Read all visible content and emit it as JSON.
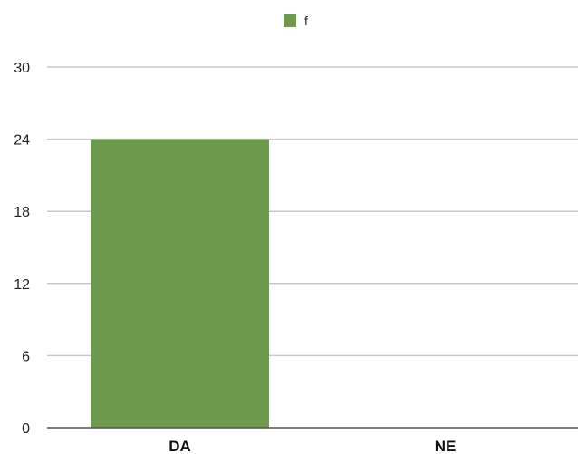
{
  "chart_data": {
    "type": "bar",
    "categories": [
      "DA",
      "NE"
    ],
    "series": [
      {
        "name": "f",
        "values": [
          24,
          0
        ]
      }
    ],
    "title": "",
    "xlabel": "",
    "ylabel": "",
    "ylim": [
      0,
      30
    ],
    "yticks": [
      "0",
      "6",
      "12",
      "18",
      "24",
      "30"
    ],
    "grid": true,
    "legend_position": "top-center",
    "colors": {
      "series": "#6e9a4e",
      "grid": "#c8c8c8",
      "axis": "#555555"
    }
  }
}
